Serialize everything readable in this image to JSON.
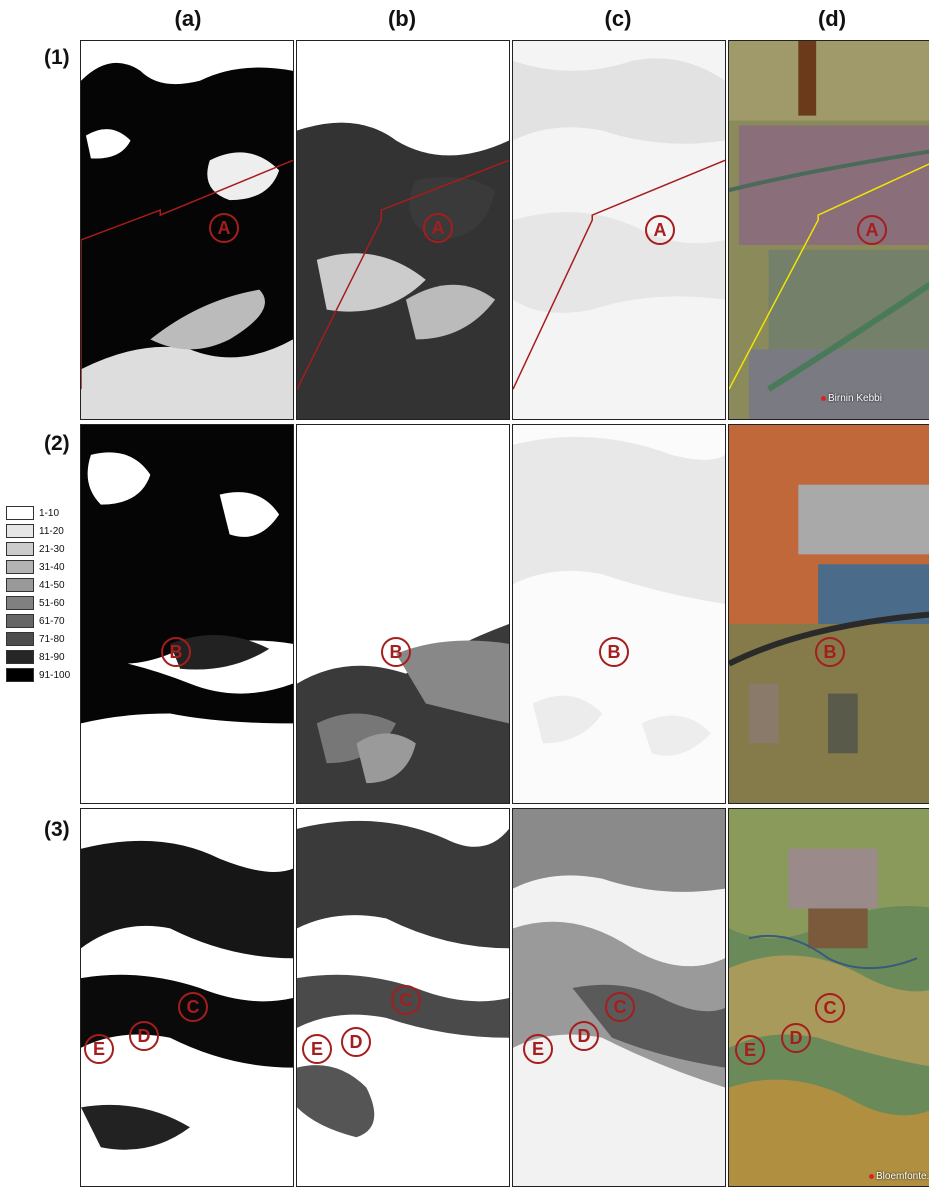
{
  "columns": [
    "(a)",
    "(b)",
    "(c)",
    "(d)"
  ],
  "rows": [
    "(1)",
    "(2)",
    "(3)"
  ],
  "legend": [
    {
      "label": "1-10",
      "color": "#ffffff"
    },
    {
      "label": "11-20",
      "color": "#e6e6e6"
    },
    {
      "label": "21-30",
      "color": "#cccccc"
    },
    {
      "label": "31-40",
      "color": "#b3b3b3"
    },
    {
      "label": "41-50",
      "color": "#999999"
    },
    {
      "label": "51-60",
      "color": "#808080"
    },
    {
      "label": "61-70",
      "color": "#666666"
    },
    {
      "label": "71-80",
      "color": "#4d4d4d"
    },
    {
      "label": "81-90",
      "color": "#262626"
    },
    {
      "label": "91-100",
      "color": "#000000"
    }
  ],
  "markers": {
    "row1": "A",
    "row2": "B",
    "row3": [
      "C",
      "D",
      "E"
    ]
  },
  "places": {
    "row1": "Birnin Kebbi",
    "row3": "Bloemfonte..."
  },
  "colors": {
    "marker": "#a51d1d",
    "boundary": "#a51d1d",
    "boundary_satellite": "#f2e600"
  }
}
